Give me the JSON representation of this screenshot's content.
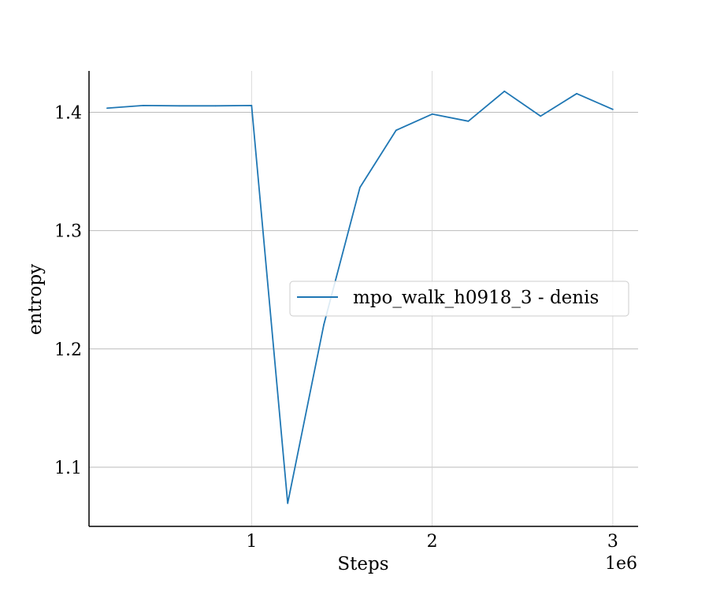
{
  "chart_data": {
    "type": "line",
    "xlabel": "Steps",
    "ylabel": "entropy",
    "x_offset_label": "1e6",
    "xlim": [
      0.1,
      3.14
    ],
    "ylim": [
      1.05,
      1.435
    ],
    "x_ticks": [
      1,
      2,
      3
    ],
    "x_tick_labels": [
      "1",
      "2",
      "3"
    ],
    "y_ticks": [
      1.1,
      1.2,
      1.3,
      1.4
    ],
    "y_tick_labels": [
      "1.1",
      "1.2",
      "1.3",
      "1.4"
    ],
    "grid": true,
    "legend_position": "center-right",
    "series": [
      {
        "name": "mpo_walk_h0918_3 - denis",
        "color": "#1f77b4",
        "x": [
          0.2,
          0.4,
          0.6,
          0.8,
          1.0,
          1.2,
          1.4,
          1.6,
          1.8,
          2.0,
          2.2,
          2.4,
          2.6,
          2.8,
          3.0
        ],
        "y": [
          1.4035,
          1.4058,
          1.4055,
          1.4055,
          1.4058,
          1.0695,
          1.2205,
          1.3365,
          1.3848,
          1.3985,
          1.3925,
          1.4178,
          1.3968,
          1.4158,
          1.4025
        ]
      }
    ]
  }
}
